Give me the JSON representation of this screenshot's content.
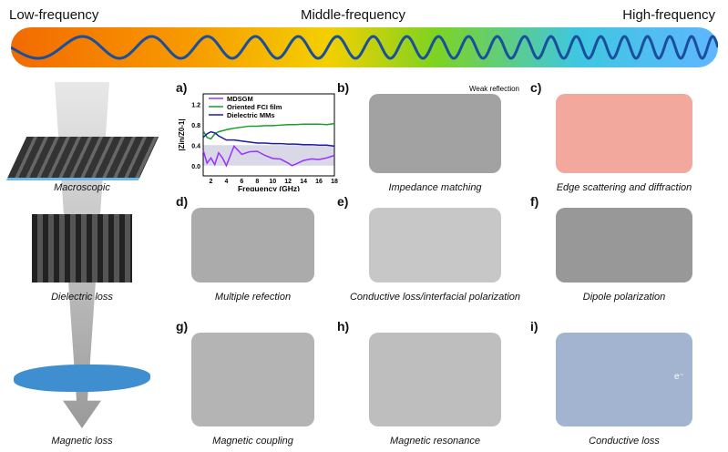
{
  "header": {
    "low": "Low-frequency",
    "middle": "Middle-frequency",
    "high": "High-frequency"
  },
  "left": {
    "macroscopic": "Macroscopic",
    "dielectric": "Dielectric loss",
    "magnetic": "Magnetic loss"
  },
  "panels": [
    {
      "label": "a)"
    },
    {
      "label": "b)",
      "caption": "Impedance matching",
      "note": "Weak reflection"
    },
    {
      "label": "c)",
      "caption": "Edge scattering and diffraction"
    },
    {
      "label": "d)",
      "caption": "Multiple refection"
    },
    {
      "label": "e)",
      "caption": "Conductive loss/interfacial polarization"
    },
    {
      "label": "f)",
      "caption": "Dipole polarization"
    },
    {
      "label": "g)",
      "caption": "Magnetic coupling"
    },
    {
      "label": "h)",
      "caption": "Magnetic resonance"
    },
    {
      "label": "i)",
      "caption": "Conductive loss",
      "electron": "e⁻"
    }
  ],
  "chart_data": {
    "type": "line",
    "xlabel": "Frequency (GHz)",
    "ylabel": "|Zin/Z0-1|",
    "xlim": [
      1,
      18
    ],
    "ylim": [
      -0.2,
      1.4
    ],
    "xticks": [
      2,
      4,
      6,
      8,
      10,
      12,
      14,
      16,
      18
    ],
    "yticks": [
      0.0,
      0.4,
      0.8,
      1.2
    ],
    "shaded_band": [
      0,
      0.4
    ],
    "shade_color": "#d8d8e6",
    "legend": "top",
    "x": [
      1,
      1.5,
      2,
      2.5,
      3,
      3.5,
      4,
      5,
      6,
      7,
      8,
      9,
      10,
      11,
      12,
      12.5,
      13,
      14,
      15,
      16,
      17,
      18
    ],
    "series": [
      {
        "name": "MDSGM",
        "color": "#9b30ff",
        "values": [
          0.3,
          0.05,
          0.15,
          0.02,
          0.25,
          0.15,
          0.0,
          0.38,
          0.22,
          0.27,
          0.28,
          0.2,
          0.14,
          0.13,
          0.05,
          0.0,
          0.03,
          0.1,
          0.13,
          0.12,
          0.15,
          0.2
        ]
      },
      {
        "name": "Oriented FCI film",
        "color": "#1a9e2a",
        "values": [
          0.68,
          0.55,
          0.52,
          0.62,
          0.66,
          0.68,
          0.7,
          0.73,
          0.75,
          0.77,
          0.77,
          0.78,
          0.78,
          0.79,
          0.8,
          0.8,
          0.8,
          0.81,
          0.81,
          0.81,
          0.8,
          0.82
        ]
      },
      {
        "name": "Dielectric MMs",
        "color": "#1c1ca8",
        "values": [
          0.55,
          0.62,
          0.66,
          0.64,
          0.58,
          0.54,
          0.5,
          0.5,
          0.48,
          0.46,
          0.44,
          0.44,
          0.43,
          0.43,
          0.42,
          0.42,
          0.42,
          0.41,
          0.41,
          0.4,
          0.4,
          0.38
        ]
      }
    ]
  }
}
